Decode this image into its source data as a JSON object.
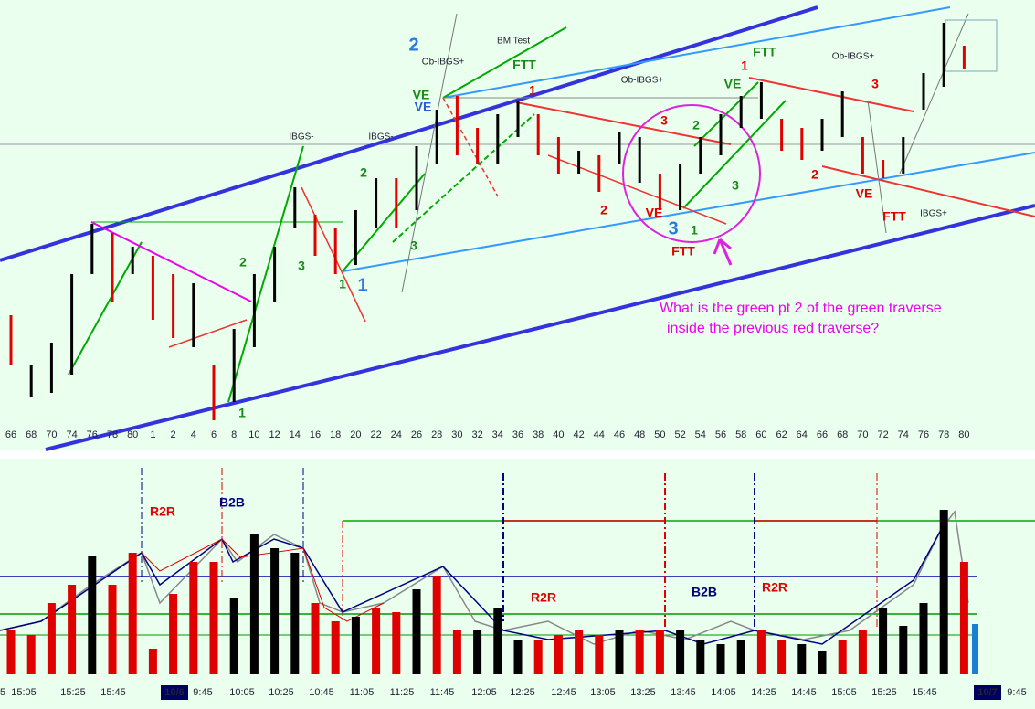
{
  "chart_data": [
    {
      "type": "ohlc",
      "categories": [
        "66",
        "68",
        "70",
        "74",
        "76",
        "78",
        "80",
        "1",
        "2",
        "4",
        "6",
        "8",
        "10",
        "12",
        "14",
        "16",
        "18",
        "20",
        "22",
        "24",
        "26",
        "28",
        "30",
        "32",
        "34",
        "36",
        "38",
        "40",
        "42",
        "44",
        "46",
        "48",
        "50",
        "52",
        "54",
        "56",
        "58",
        "60",
        "62",
        "64",
        "66",
        "68",
        "70",
        "72",
        "74",
        "76",
        "78",
        "80"
      ],
      "high": [
        155,
        100,
        125,
        200,
        255,
        245,
        230,
        220,
        200,
        190,
        100,
        140,
        200,
        230,
        295,
        265,
        250,
        270,
        305,
        305,
        340,
        380,
        395,
        360,
        375,
        390,
        375,
        350,
        335,
        330,
        355,
        350,
        310,
        320,
        350,
        375,
        395,
        410,
        370,
        360,
        370,
        400,
        350,
        325,
        350,
        420,
        475,
        450
      ],
      "low": [
        100,
        65,
        70,
        90,
        200,
        170,
        200,
        150,
        130,
        120,
        40,
        60,
        120,
        170,
        250,
        220,
        200,
        210,
        250,
        250,
        270,
        320,
        330,
        320,
        320,
        350,
        330,
        310,
        310,
        290,
        320,
        300,
        270,
        270,
        310,
        330,
        360,
        370,
        335,
        325,
        335,
        350,
        310,
        305,
        310,
        380,
        405,
        425
      ],
      "colors": [
        "#e00000",
        "#000000",
        "#000000",
        "#000000",
        "#000000",
        "#e00000",
        "#000000",
        "#e00000",
        "#e00000",
        "#000000",
        "#e00000",
        "#000000",
        "#000000",
        "#000000",
        "#000000",
        "#e00000",
        "#e00000",
        "#000000",
        "#000000",
        "#e00000",
        "#000000",
        "#000000",
        "#e00000",
        "#e00000",
        "#000000",
        "#000000",
        "#e00000",
        "#e00000",
        "#000000",
        "#e00000",
        "#000000",
        "#000000",
        "#e00000",
        "#000000",
        "#000000",
        "#000000",
        "#000000",
        "#000000",
        "#e00000",
        "#e00000",
        "#000000",
        "#000000",
        "#e00000",
        "#e00000",
        "#000000",
        "#000000",
        "#000000",
        "#e00000"
      ],
      "ylim": [
        20,
        500
      ],
      "annotations": [
        "2",
        "Ob-IBGS+",
        "BM Test",
        "FTT",
        "1",
        "VE",
        "VE",
        "IBGS-",
        "IBGS-",
        "2",
        "2",
        "3",
        "1",
        "1",
        "3",
        "1",
        "Ob-IBGS+",
        "3",
        "2",
        "VE",
        "1",
        "FTT",
        "Ob-IBGS+",
        "3",
        "2",
        "VE",
        "3",
        "1",
        "3",
        "FTT",
        "2",
        "VE",
        "FTT",
        "IBGS+",
        "What is the green pt 2 of the green traverse",
        "inside the previous red traverse?"
      ]
    },
    {
      "type": "bar",
      "values": [
        48,
        43,
        78,
        98,
        130,
        98,
        133,
        28,
        88,
        123,
        123,
        83,
        153,
        138,
        133,
        78,
        58,
        63,
        73,
        68,
        93,
        108,
        48,
        48,
        73,
        38,
        38,
        43,
        48,
        43,
        48,
        48,
        48,
        48,
        38,
        33,
        38,
        48,
        38,
        33,
        26,
        38,
        48,
        73,
        53,
        78,
        180,
        123
      ],
      "colors": [
        "#e00000",
        "#e00000",
        "#e00000",
        "#e00000",
        "#000000",
        "#e00000",
        "#e00000",
        "#e00000",
        "#e00000",
        "#e00000",
        "#e00000",
        "#000000",
        "#000000",
        "#000000",
        "#000000",
        "#e00000",
        "#e00000",
        "#000000",
        "#e00000",
        "#e00000",
        "#000000",
        "#e00000",
        "#e00000",
        "#000000",
        "#000000",
        "#000000",
        "#e00000",
        "#e00000",
        "#e00000",
        "#e00000",
        "#000000",
        "#e00000",
        "#e00000",
        "#000000",
        "#000000",
        "#000000",
        "#000000",
        "#e00000",
        "#e00000",
        "#000000",
        "#000000",
        "#e00000",
        "#e00000",
        "#000000",
        "#000000",
        "#000000",
        "#000000",
        "#e00000"
      ],
      "ylim": [
        0,
        190
      ],
      "xlabels": [
        "5",
        "15:05",
        "15:25",
        "15:45",
        "10/6",
        "9:45",
        "10:05",
        "10:25",
        "10:45",
        "11:05",
        "11:25",
        "11:45",
        "12:05",
        "12:25",
        "12:45",
        "13:05",
        "13:25",
        "13:45",
        "14:05",
        "14:25",
        "14:45",
        "15:05",
        "15:25",
        "15:45",
        "10/7",
        "9:45"
      ],
      "annotations": [
        "R2R",
        "B2B",
        "R2R",
        "B2B",
        "R2R"
      ]
    }
  ]
}
